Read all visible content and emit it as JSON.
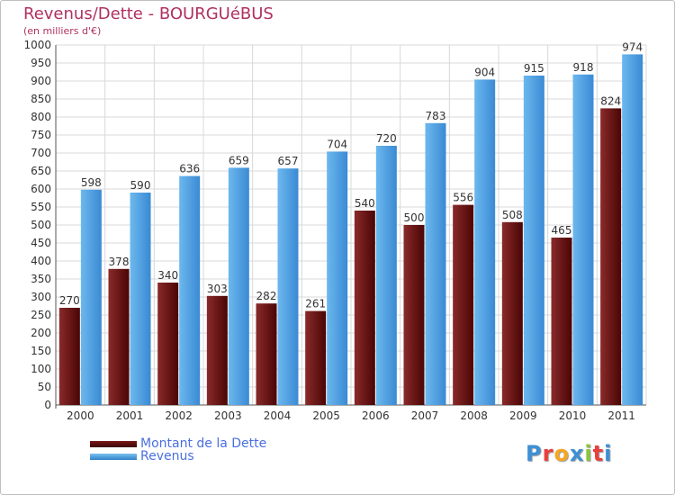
{
  "header": {
    "title": "Revenus/Dette - BOURGUéBUS",
    "subtitle": "(en milliers d'€)"
  },
  "legend": {
    "dette_label": "Montant de la Dette",
    "revenus_label": "Revenus"
  },
  "logo": {
    "text": "Proxiti",
    "letters": [
      "P",
      "r",
      "o",
      "x",
      "i",
      "t",
      "i"
    ],
    "letter_colors": [
      "#3d8fd6",
      "#e83f3f",
      "#f5a623",
      "#3d8fd6",
      "#8ac43f",
      "#e83f3f",
      "#3d8fd6"
    ]
  },
  "colors": {
    "dette": "#5a0a0a",
    "revenus": "#4aa0e0",
    "grid": "#d8d8d8",
    "text": "#333333"
  },
  "chart_data": {
    "type": "bar",
    "title": "Revenus/Dette - BOURGUéBUS",
    "ylabel": "(en milliers d'€)",
    "xlabel": "",
    "categories": [
      "2000",
      "2001",
      "2002",
      "2003",
      "2004",
      "2005",
      "2006",
      "2007",
      "2008",
      "2009",
      "2010",
      "2011"
    ],
    "series": [
      {
        "name": "Montant de la Dette",
        "values": [
          270,
          378,
          340,
          303,
          282,
          261,
          540,
          500,
          556,
          508,
          465,
          824
        ]
      },
      {
        "name": "Revenus",
        "values": [
          598,
          590,
          636,
          659,
          657,
          704,
          720,
          783,
          904,
          915,
          918,
          974
        ]
      }
    ],
    "ylim": [
      0,
      1000
    ],
    "yticks": [
      0,
      50,
      100,
      150,
      200,
      250,
      300,
      350,
      400,
      450,
      500,
      550,
      600,
      650,
      700,
      750,
      800,
      850,
      900,
      950,
      1000
    ],
    "grid": true,
    "legend_position": "bottom-left"
  }
}
